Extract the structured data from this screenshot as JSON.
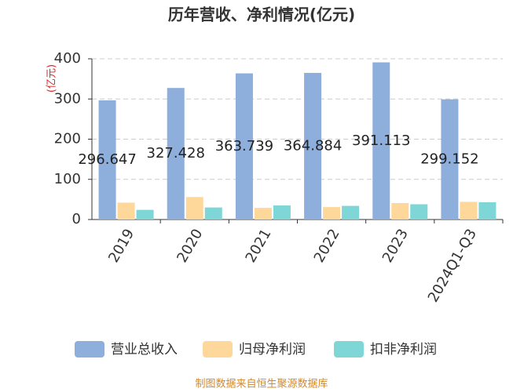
{
  "chart_data": {
    "type": "bar",
    "title": "历年营收、净利情况(亿元)",
    "y_label": "(亿元)",
    "categories": [
      "2019",
      "2020",
      "2021",
      "2022",
      "2023",
      "2024Q1-Q3"
    ],
    "series": [
      {
        "name": "营业总收入",
        "color": "#8eaedc",
        "values": [
          296.647,
          327.428,
          363.739,
          364.884,
          391.113,
          299.152
        ],
        "show_labels": true
      },
      {
        "name": "归母净利润",
        "color": "#fdd89a",
        "values": [
          42,
          56,
          29,
          31,
          41,
          44
        ]
      },
      {
        "name": "扣非净利润",
        "color": "#7fd6d6",
        "values": [
          24,
          30,
          35,
          34,
          38,
          43
        ]
      }
    ],
    "ylim": [
      0,
      400
    ],
    "yticks": [
      0,
      100,
      200,
      300,
      400
    ],
    "grid": true,
    "footer": "制图数据来自恒生聚源数据库"
  }
}
